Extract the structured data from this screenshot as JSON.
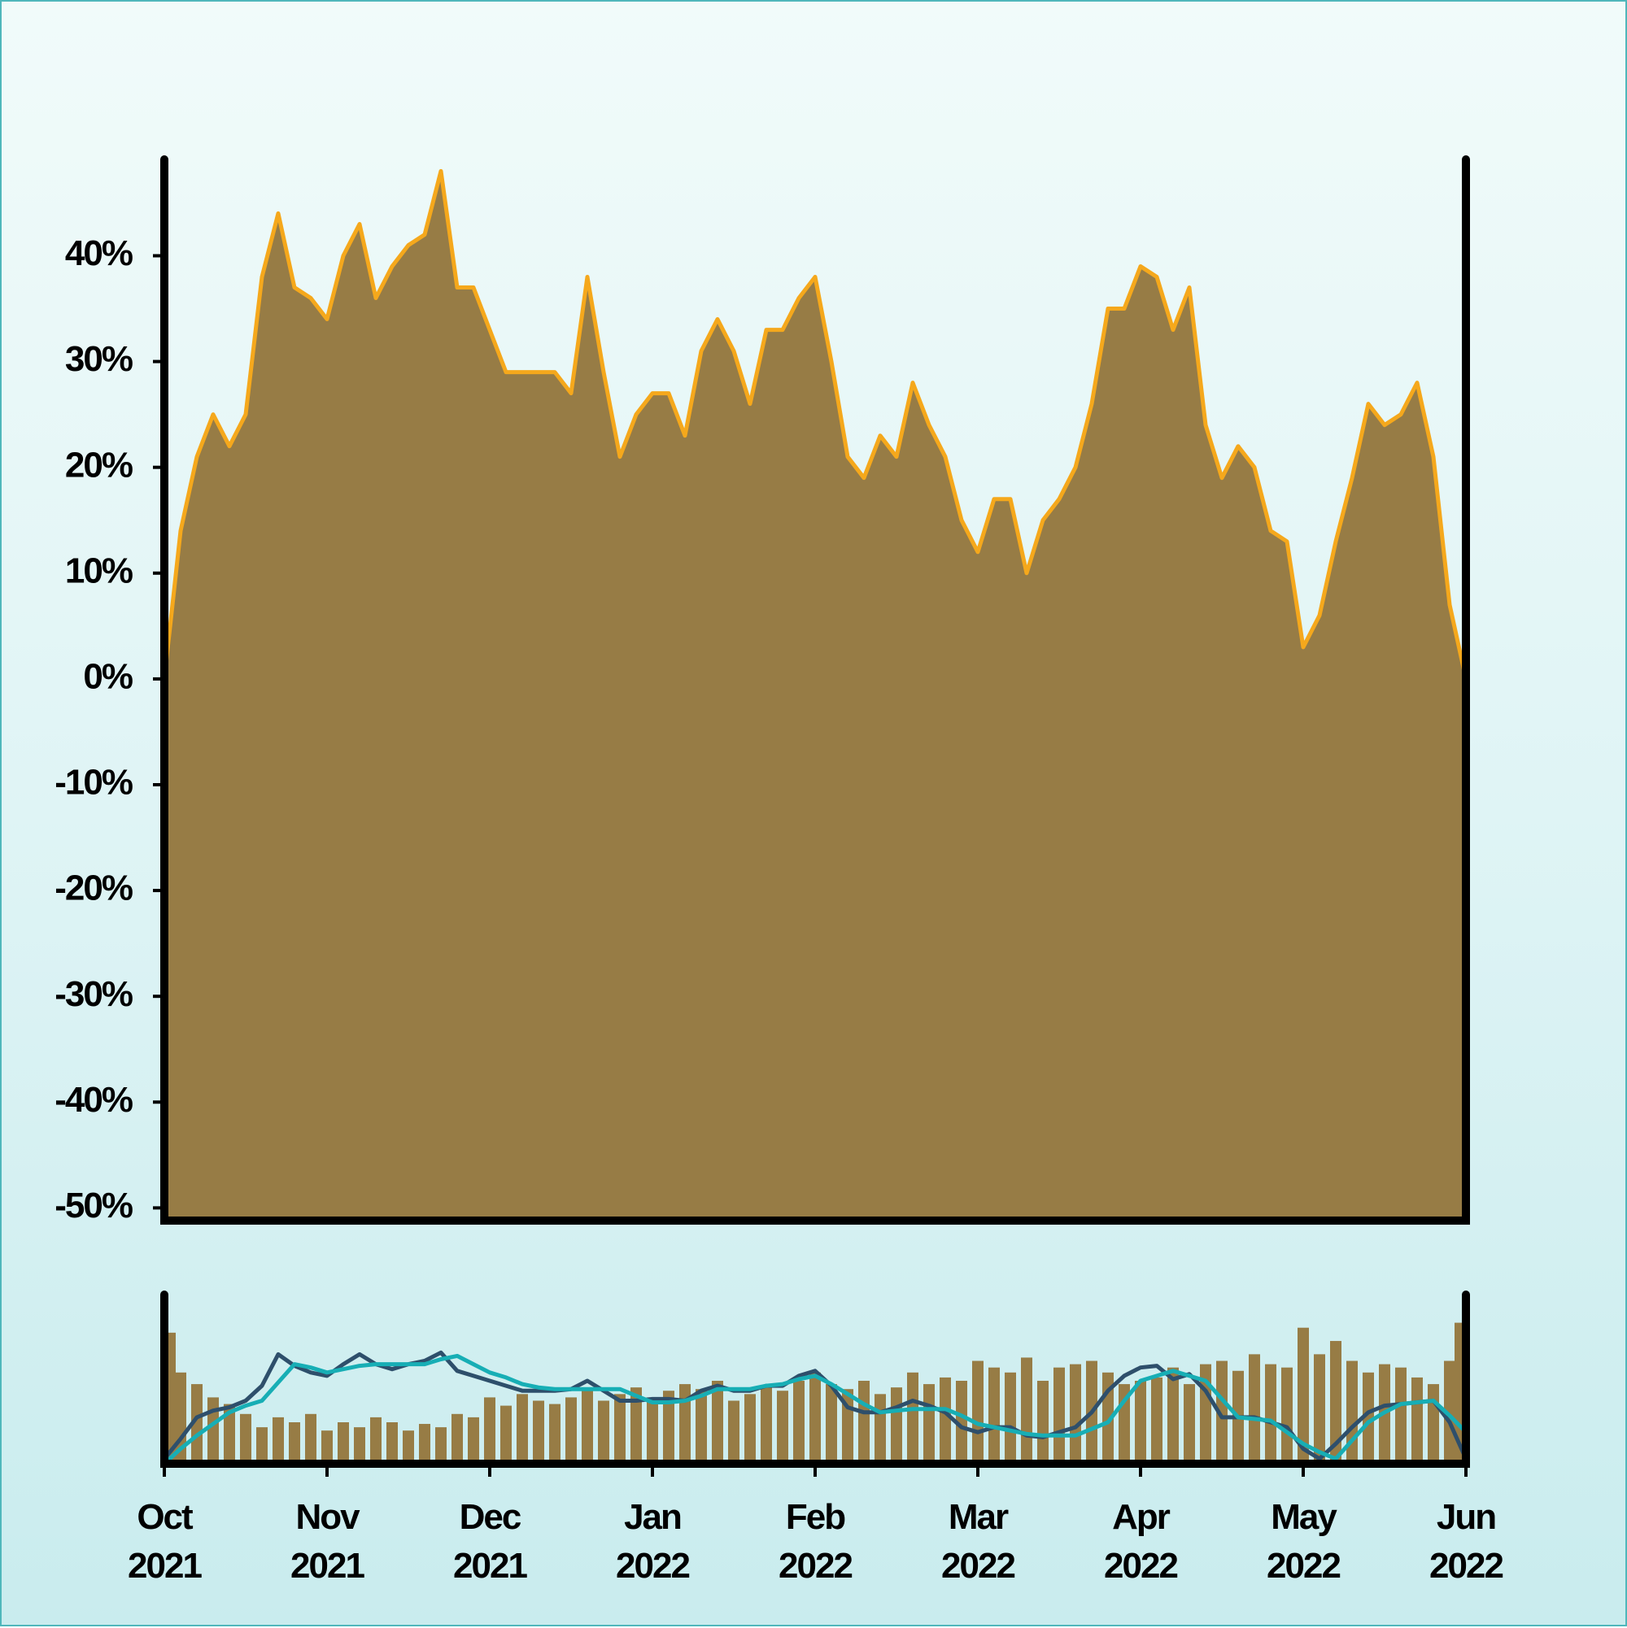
{
  "chart_data": [
    {
      "type": "area",
      "x": [
        0,
        0.1,
        0.2,
        0.3,
        0.4,
        0.5,
        0.6,
        0.7,
        0.8,
        0.9,
        1,
        1.1,
        1.2,
        1.3,
        1.4,
        1.5,
        1.6,
        1.7,
        1.8,
        1.9,
        2,
        2.1,
        2.2,
        2.3,
        2.4,
        2.5,
        2.6,
        2.7,
        2.8,
        2.9,
        3,
        3.1,
        3.2,
        3.3,
        3.4,
        3.5,
        3.6,
        3.7,
        3.8,
        3.9,
        4,
        4.1,
        4.2,
        4.3,
        4.4,
        4.5,
        4.6,
        4.7,
        4.8,
        4.9,
        5,
        5.1,
        5.2,
        5.3,
        5.4,
        5.5,
        5.6,
        5.7,
        5.8,
        5.9,
        6,
        6.1,
        6.2,
        6.3,
        6.4,
        6.5,
        6.6,
        6.7,
        6.8,
        6.9,
        7,
        7.1,
        7.2,
        7.3,
        7.4,
        7.5,
        7.6,
        7.7,
        7.8,
        7.9,
        8
      ],
      "values": [
        0,
        14,
        21,
        25,
        22,
        25,
        38,
        44,
        37,
        36,
        34,
        40,
        43,
        36,
        39,
        41,
        42,
        48,
        37,
        37,
        33,
        29,
        29,
        29,
        29,
        27,
        38,
        29,
        21,
        25,
        27,
        27,
        23,
        31,
        34,
        31,
        26,
        33,
        33,
        36,
        38,
        30,
        21,
        19,
        23,
        21,
        28,
        24,
        21,
        15,
        12,
        17,
        17,
        10,
        15,
        17,
        20,
        26,
        35,
        35,
        39,
        38,
        33,
        37,
        24,
        19,
        22,
        20,
        14,
        13,
        3,
        6,
        13,
        19,
        26,
        24,
        25,
        28,
        21,
        7,
        0
      ],
      "color": "#977c45",
      "line_color": "#f5a81c",
      "xlim": [
        0,
        8
      ],
      "ylim": [
        -51.2,
        48.8
      ],
      "yticks": [
        {
          "value": -50,
          "label": "-50%"
        },
        {
          "value": -40,
          "label": "-40%"
        },
        {
          "value": -30,
          "label": "-30%"
        },
        {
          "value": -20,
          "label": "-20%"
        },
        {
          "value": -10,
          "label": "-10%"
        },
        {
          "value": 0,
          "label": "0%"
        },
        {
          "value": 10,
          "label": "10%"
        },
        {
          "value": 20,
          "label": "20%"
        },
        {
          "value": 30,
          "label": "30%"
        },
        {
          "value": 40,
          "label": "40%"
        }
      ]
    },
    {
      "type": "bar",
      "x": [
        0,
        0.1,
        0.2,
        0.3,
        0.4,
        0.5,
        0.6,
        0.7,
        0.8,
        0.9,
        1,
        1.1,
        1.2,
        1.3,
        1.4,
        1.5,
        1.6,
        1.7,
        1.8,
        1.9,
        2,
        2.1,
        2.2,
        2.3,
        2.4,
        2.5,
        2.6,
        2.7,
        2.8,
        2.9,
        3,
        3.1,
        3.2,
        3.3,
        3.4,
        3.5,
        3.6,
        3.7,
        3.8,
        3.9,
        4,
        4.1,
        4.2,
        4.3,
        4.4,
        4.5,
        4.6,
        4.7,
        4.8,
        4.9,
        5,
        5.1,
        5.2,
        5.3,
        5.4,
        5.5,
        5.6,
        5.7,
        5.8,
        5.9,
        6,
        6.1,
        6.2,
        6.3,
        6.4,
        6.5,
        6.6,
        6.7,
        6.8,
        6.9,
        7,
        7.1,
        7.2,
        7.3,
        7.4,
        7.5,
        7.6,
        7.7,
        7.8,
        7.9,
        8
      ],
      "series": [
        {
          "type": "bar",
          "color": "#977c45",
          "values": [
            79,
            55,
            48,
            40,
            36,
            30,
            22,
            28,
            25,
            30,
            20,
            25,
            22,
            28,
            25,
            20,
            24,
            22,
            30,
            28,
            40,
            35,
            42,
            38,
            36,
            40,
            44,
            38,
            42,
            46,
            40,
            44,
            48,
            45,
            50,
            38,
            42,
            46,
            44,
            50,
            55,
            48,
            45,
            50,
            42,
            46,
            55,
            48,
            52,
            50,
            62,
            58,
            55,
            64,
            50,
            58,
            60,
            62,
            55,
            48,
            50,
            52,
            58,
            48,
            60,
            62,
            56,
            66,
            60,
            58,
            82,
            66,
            74,
            62,
            55,
            60,
            58,
            52,
            48,
            62,
            85
          ]
        },
        {
          "type": "line",
          "color": "#2e4f6b",
          "values": [
            3,
            15,
            28,
            32,
            34,
            38,
            47,
            66,
            59,
            55,
            53,
            60,
            66,
            60,
            57,
            60,
            62,
            67,
            56,
            53,
            50,
            47,
            44,
            44,
            44,
            45,
            50,
            44,
            38,
            38,
            39,
            39,
            38,
            44,
            47,
            44,
            44,
            47,
            47,
            53,
            56,
            47,
            34,
            31,
            31,
            34,
            38,
            35,
            31,
            22,
            19,
            22,
            22,
            17,
            16,
            19,
            22,
            31,
            44,
            53,
            58,
            59,
            51,
            54,
            44,
            28,
            28,
            28,
            25,
            22,
            9,
            3,
            12,
            22,
            31,
            35,
            36,
            37,
            38,
            25,
            3
          ]
        },
        {
          "type": "line",
          "color": "#17aeb5",
          "values": [
            0,
            9,
            17,
            24,
            31,
            35,
            38,
            49,
            60,
            58,
            55,
            57,
            59,
            60,
            60,
            60,
            60,
            63,
            65,
            60,
            55,
            52,
            48,
            46,
            45,
            45,
            45,
            45,
            45,
            41,
            37,
            37,
            38,
            41,
            45,
            45,
            45,
            47,
            48,
            51,
            53,
            48,
            42,
            36,
            31,
            32,
            33,
            33,
            33,
            29,
            24,
            22,
            20,
            18,
            17,
            17,
            17,
            21,
            25,
            38,
            50,
            53,
            56,
            53,
            50,
            39,
            28,
            27,
            26,
            19,
            12,
            7,
            3,
            14,
            25,
            31,
            36,
            37,
            38,
            29,
            19
          ]
        }
      ],
      "xlim": [
        0,
        8
      ],
      "ylim": [
        0,
        100
      ],
      "xticks": [
        {
          "value": 0,
          "label": "Oct 2021"
        },
        {
          "value": 1,
          "label": "Nov 2021"
        },
        {
          "value": 2,
          "label": "Dec 2021"
        },
        {
          "value": 3,
          "label": "Jan 2022"
        },
        {
          "value": 4,
          "label": "Feb 2022"
        },
        {
          "value": 5,
          "label": "Mar 2022"
        },
        {
          "value": 6,
          "label": "Apr 2022"
        },
        {
          "value": 7,
          "label": "May 2022"
        },
        {
          "value": 8,
          "label": "Jun 2022"
        }
      ]
    }
  ]
}
